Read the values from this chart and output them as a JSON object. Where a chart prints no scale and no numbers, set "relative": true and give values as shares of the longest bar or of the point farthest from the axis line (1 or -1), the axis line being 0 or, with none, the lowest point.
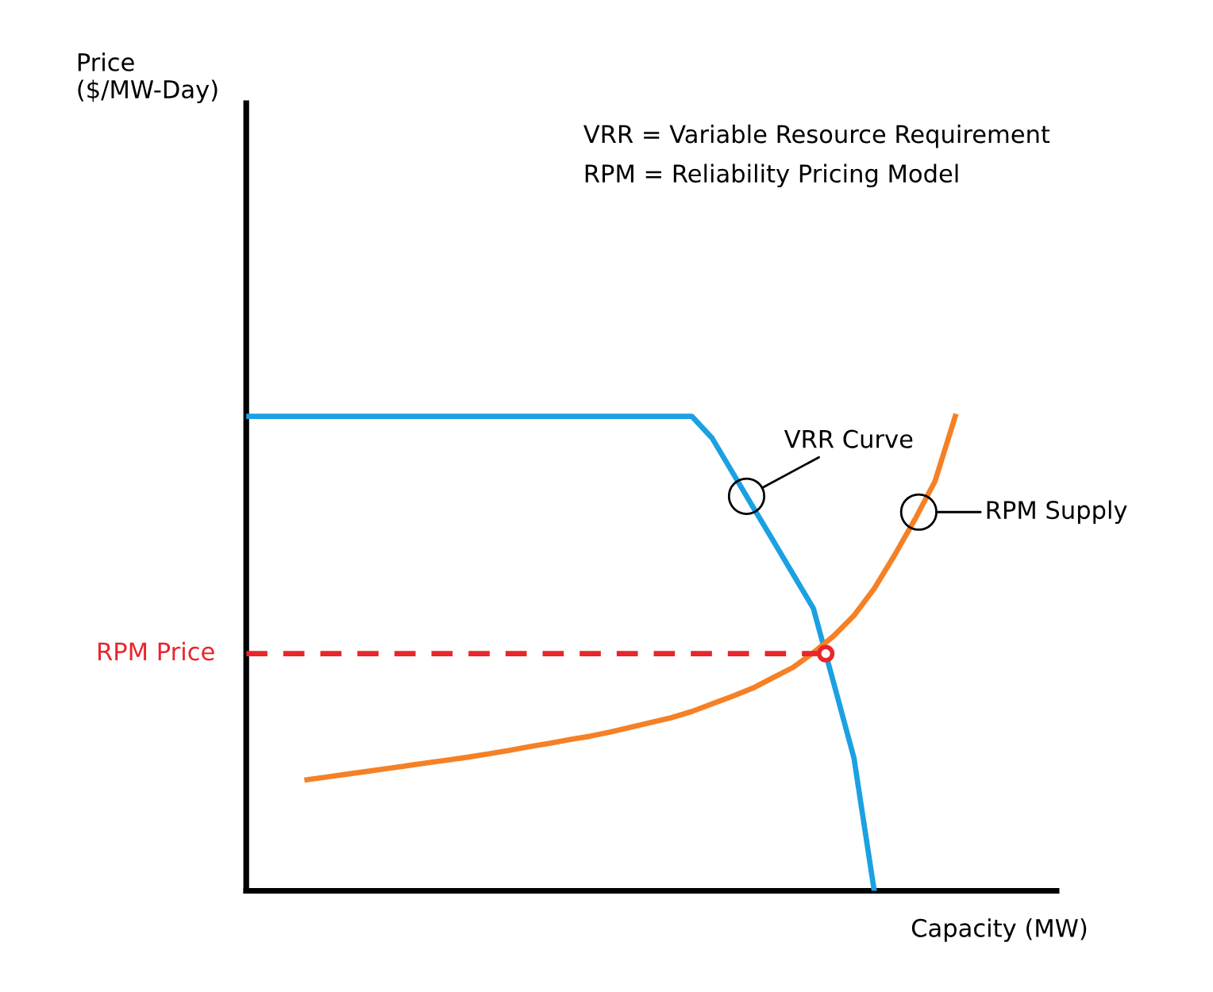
{
  "chart_data": {
    "type": "line",
    "relative": true,
    "xlabel": "Capacity (MW)",
    "legend": false,
    "line_style": "solid",
    "categories": [
      null,
      null,
      null,
      null,
      null,
      null,
      null,
      null,
      null,
      null,
      null,
      null,
      null,
      null,
      null,
      null,
      null,
      null,
      null,
      null,
      null,
      null,
      null,
      null,
      null,
      null,
      null,
      null,
      null,
      null,
      null,
      null,
      null,
      null,
      null,
      null,
      null,
      null,
      null,
      null,
      null
    ],
    "series": [
      {
        "color": "#1ba1e2",
        "values": [
          1,
          1,
          1,
          1,
          1,
          1,
          1,
          1,
          1,
          1,
          1,
          1,
          1,
          1,
          1,
          1,
          1,
          1,
          1,
          1,
          1,
          1,
          1,
          0.954,
          0.882,
          0.81,
          0.739,
          0.667,
          0.595,
          0.438,
          0.28,
          0,
          null,
          null,
          null,
          null,
          null,
          null,
          null,
          null,
          null
        ]
      },
      {
        "color": "#f58025",
        "values": [
          null,
          null,
          null,
          0.234,
          0.24,
          0.246,
          0.252,
          0.258,
          0.264,
          0.27,
          0.276,
          0.282,
          0.289,
          0.296,
          0.304,
          0.311,
          0.319,
          0.326,
          0.335,
          0.345,
          0.355,
          0.365,
          0.378,
          0.394,
          0.41,
          0.427,
          0.449,
          0.471,
          0.502,
          0.537,
          0.58,
          0.637,
          0.707,
          0.782,
          0.863,
          1,
          null,
          null,
          null,
          null,
          null
        ]
      }
    ],
    "ref_lines": [
      {
        "axis": "y",
        "value": 0.5,
        "label": "RPM Price",
        "color": "#e8262b",
        "line_style": "dashed"
      }
    ],
    "annotations": [
      "Price\n($/MW-Day)",
      "VRR = Variable Resource Requirement",
      "RPM = Reliability Pricing Model",
      "VRR Curve",
      "RPM Supply"
    ]
  }
}
